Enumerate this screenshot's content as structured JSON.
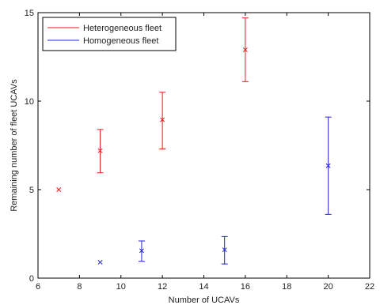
{
  "chart_data": {
    "type": "scatter",
    "title": "",
    "xlabel": "Number of UCAVs",
    "ylabel": "Remaining number of fleet UCAVs",
    "xlim": [
      6,
      22
    ],
    "ylim": [
      0,
      15
    ],
    "xticks": [
      6,
      8,
      10,
      12,
      14,
      16,
      18,
      20,
      22
    ],
    "yticks": [
      0,
      5,
      10,
      15
    ],
    "grid": false,
    "legend_position": "top-left",
    "marker": "x",
    "series": [
      {
        "name": "Heterogeneous fleet",
        "color": "#e41a1c",
        "points": [
          {
            "x": 7,
            "y": 5.0,
            "low": 5.0,
            "high": 5.0
          },
          {
            "x": 9,
            "y": 7.2,
            "low": 5.95,
            "high": 8.4
          },
          {
            "x": 12,
            "y": 8.95,
            "low": 7.3,
            "high": 10.5
          },
          {
            "x": 16,
            "y": 12.9,
            "low": 11.1,
            "high": 14.7
          }
        ]
      },
      {
        "name": "Homogeneous fleet",
        "color": "#2222dd",
        "points": [
          {
            "x": 9,
            "y": 0.9,
            "low": 0.9,
            "high": 0.9
          },
          {
            "x": 11,
            "y": 1.55,
            "low": 0.95,
            "high": 2.1
          },
          {
            "x": 15,
            "y": 1.6,
            "low": 0.8,
            "high": 2.35
          },
          {
            "x": 20,
            "y": 6.35,
            "low": 3.6,
            "high": 9.1
          }
        ]
      }
    ]
  }
}
